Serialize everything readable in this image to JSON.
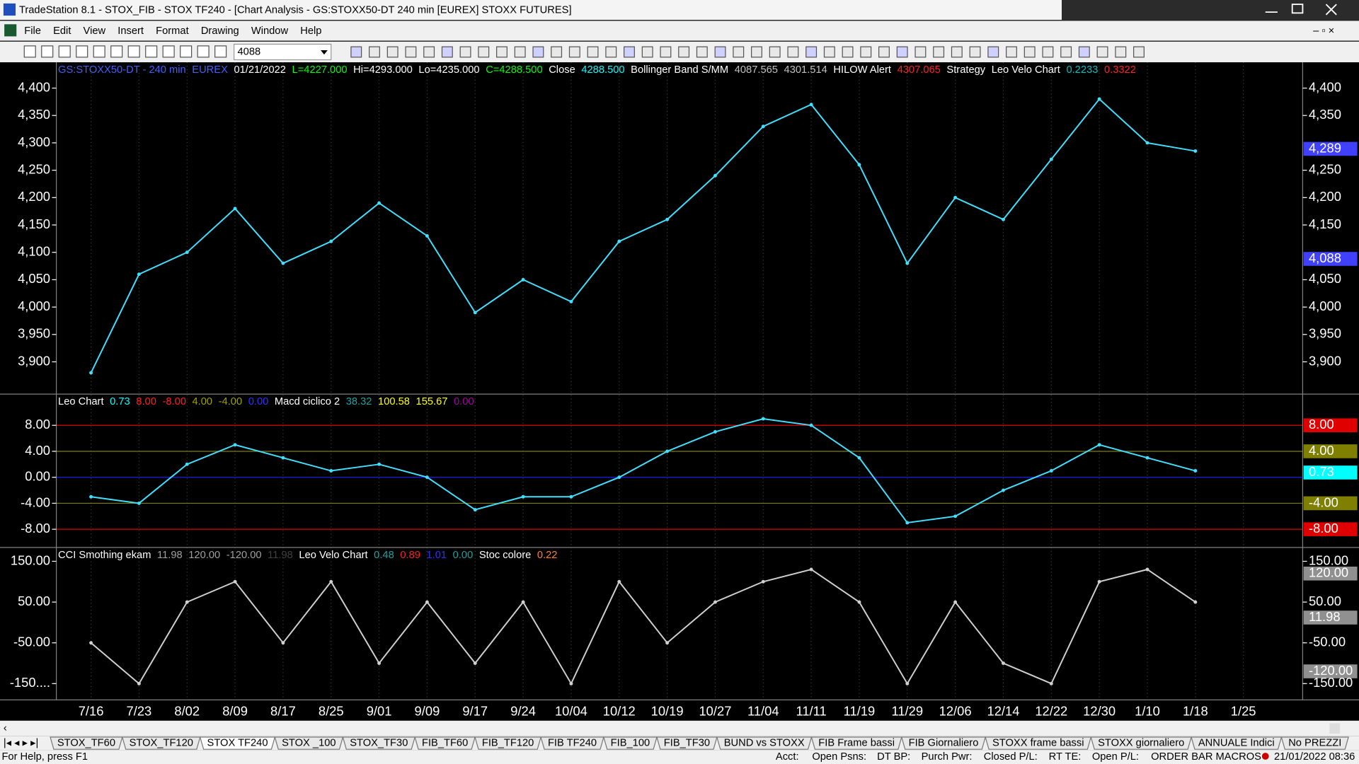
{
  "window": {
    "title": "TradeStation 8.1 - STOX_FIB - STOX TF240 - [Chart Analysis - GS:STOXX50-DT  240 min  [EUREX] STOXX FUTURES]",
    "menu": [
      "File",
      "Edit",
      "View",
      "Insert",
      "Format",
      "Drawing",
      "Window",
      "Help"
    ],
    "toolbar_combo": "4088"
  },
  "chart_data": [
    {
      "type": "line",
      "legend_items": [
        {
          "text": "GS:STOXX50-DT - 240 min",
          "color": "#4060ff"
        },
        {
          "text": "EUREX",
          "color": "#4060ff"
        },
        {
          "text": "01/21/2022",
          "color": "#ffffff"
        },
        {
          "text": "L=4227.000",
          "color": "#00ff00"
        },
        {
          "text": "Hi=4293.000",
          "color": "#ffffff"
        },
        {
          "text": "Lo=4235.000",
          "color": "#ffffff"
        },
        {
          "text": "C=4288.500",
          "color": "#00ff00"
        },
        {
          "text": "Close",
          "color": "#ffffff"
        },
        {
          "text": "4288.500",
          "color": "#00ffff"
        },
        {
          "text": "Bollinger Band S/MM",
          "color": "#ffffff"
        },
        {
          "text": "4087.565",
          "color": "#c0c0c0"
        },
        {
          "text": "4301.514",
          "color": "#c0c0c0"
        },
        {
          "text": "HILOW Alert",
          "color": "#ffffff"
        },
        {
          "text": "4307.065",
          "color": "#ff2020"
        },
        {
          "text": "Strategy",
          "color": "#ffffff"
        },
        {
          "text": "Leo Velo Chart",
          "color": "#ffffff"
        },
        {
          "text": "0.2233",
          "color": "#00c0c0"
        },
        {
          "text": "0.3322",
          "color": "#ff2020"
        }
      ],
      "categories": [
        "7/16",
        "7/23",
        "8/02",
        "8/09",
        "8/17",
        "8/25",
        "9/01",
        "9/09",
        "9/17",
        "9/24",
        "10/04",
        "10/12",
        "10/19",
        "10/27",
        "11/04",
        "11/11",
        "11/19",
        "11/29",
        "12/06",
        "12/14",
        "12/22",
        "12/30",
        "1/10",
        "1/18",
        "1/25"
      ],
      "series": [
        {
          "name": "Close",
          "color": "#40e0ff",
          "values": [
            3880,
            4060,
            4100,
            4180,
            4080,
            4120,
            4190,
            4130,
            3990,
            4050,
            4010,
            4120,
            4160,
            4240,
            4330,
            4370,
            4260,
            4080,
            4200,
            4160,
            4270,
            4380,
            4300,
            4285,
            null
          ]
        }
      ],
      "ylim": [
        3841,
        4447
      ],
      "yticks": [
        {
          "value": 4400,
          "label": "4,400"
        },
        {
          "value": 4350,
          "label": "4,350"
        },
        {
          "value": 4300,
          "label": "4,300"
        },
        {
          "value": 4250,
          "label": "4,250"
        },
        {
          "value": 4200,
          "label": "4,200"
        },
        {
          "value": 4150,
          "label": "4,150"
        },
        {
          "value": 4100,
          "label": "4,100"
        },
        {
          "value": 4050,
          "label": "4,050"
        },
        {
          "value": 4000,
          "label": "4,000"
        },
        {
          "value": 3950,
          "label": "3,950"
        },
        {
          "value": 3900,
          "label": "3,900"
        }
      ],
      "right_labels": [
        {
          "value": 4400,
          "label": "4,400"
        },
        {
          "value": 4350,
          "label": "4,350"
        },
        {
          "value": 4289,
          "label": "4,289",
          "color": "#4040ff"
        },
        {
          "value": 4250,
          "label": "4,250"
        },
        {
          "value": 4200,
          "label": "4,200"
        },
        {
          "value": 4150,
          "label": "4,150"
        },
        {
          "value": 4088,
          "label": "4,088",
          "color": "#4040ff"
        },
        {
          "value": 4050,
          "label": "4,050"
        },
        {
          "value": 4000,
          "label": "4,000"
        },
        {
          "value": 3950,
          "label": "3,950"
        },
        {
          "value": 3900,
          "label": "3,900"
        }
      ]
    },
    {
      "type": "line",
      "legend_items": [
        {
          "text": "Leo Chart",
          "color": "#ffffff"
        },
        {
          "text": "0.73",
          "color": "#00ffff"
        },
        {
          "text": "8.00",
          "color": "#ff2020"
        },
        {
          "text": "-8.00",
          "color": "#ff2020"
        },
        {
          "text": "4.00",
          "color": "#a0a000"
        },
        {
          "text": "-4.00",
          "color": "#a0a000"
        },
        {
          "text": "0.00",
          "color": "#3030ff"
        },
        {
          "text": "Macd ciclico 2",
          "color": "#ffffff"
        },
        {
          "text": "38.32",
          "color": "#20a0a0"
        },
        {
          "text": "100.58",
          "color": "#ffff00"
        },
        {
          "text": "155.67",
          "color": "#ffff00"
        },
        {
          "text": "0.00",
          "color": "#a000a0"
        }
      ],
      "series": [
        {
          "name": "Leo Chart",
          "color": "#40e0ff",
          "values": [
            -3,
            -4,
            2,
            5,
            3,
            1,
            2,
            0,
            -5,
            -3,
            -3,
            0,
            4,
            7,
            9,
            8,
            3,
            -7,
            -6,
            -2,
            1,
            5,
            3,
            1,
            null
          ]
        }
      ],
      "ylim": [
        -10.8,
        12.8
      ],
      "yticks": [
        {
          "value": 8,
          "label": "8.00"
        },
        {
          "value": 4,
          "label": "4.00"
        },
        {
          "value": 0,
          "label": "0.00"
        },
        {
          "value": -4,
          "label": "-4.00"
        },
        {
          "value": -8,
          "label": "-8.00"
        }
      ],
      "tick_colors": [
        "#e00000",
        "#808000",
        "#2020ff",
        "#808000",
        "#e00000"
      ],
      "right_labels": [
        {
          "value": 8,
          "label": "8.00",
          "color": "#e00000"
        },
        {
          "value": 4,
          "label": "4.00",
          "color": "#808000"
        },
        {
          "value": 0.73,
          "label": "0.73",
          "color": "#00ffff"
        },
        {
          "value": -4,
          "label": "-4.00",
          "color": "#808000"
        },
        {
          "value": -8,
          "label": "-8.00",
          "color": "#e00000"
        }
      ]
    },
    {
      "type": "line",
      "legend_items": [
        {
          "text": "CCI Smothing ekam",
          "color": "#ffffff"
        },
        {
          "text": "11.98",
          "color": "#a0a0a0"
        },
        {
          "text": "120.00",
          "color": "#a0a0a0"
        },
        {
          "text": "-120.00",
          "color": "#a0a0a0"
        },
        {
          "text": "11.98",
          "color": "#404040"
        },
        {
          "text": "Leo Velo Chart",
          "color": "#ffffff"
        },
        {
          "text": "0.48",
          "color": "#20a0a0"
        },
        {
          "text": "0.89",
          "color": "#ff2020"
        },
        {
          "text": "1.01",
          "color": "#3030ff"
        },
        {
          "text": "0.00",
          "color": "#20a0a0"
        },
        {
          "text": "Stoc colore",
          "color": "#ffffff"
        },
        {
          "text": "0.22",
          "color": "#ff8020"
        }
      ],
      "series": [
        {
          "name": "CCI Smothing ekam",
          "color": "#d0d0d0",
          "values": [
            -50,
            -150,
            50,
            100,
            -50,
            100,
            -100,
            50,
            -100,
            50,
            -150,
            100,
            -50,
            50,
            100,
            130,
            50,
            -150,
            50,
            -100,
            -150,
            100,
            130,
            50,
            null
          ]
        }
      ],
      "ylim": [
        -190,
        184
      ],
      "yticks": [
        {
          "value": 150,
          "label": "150.00"
        },
        {
          "value": 50,
          "label": "50.00"
        },
        {
          "value": -50,
          "label": "-50.00"
        },
        {
          "value": -150,
          "label": "-150...."
        }
      ],
      "right_labels": [
        {
          "value": 150,
          "label": "150.00"
        },
        {
          "value": 120,
          "label": "120.00",
          "color": "#909090"
        },
        {
          "value": 50,
          "label": "50.00"
        },
        {
          "value": 11.98,
          "label": "11.98",
          "color": "#909090"
        },
        {
          "value": -50,
          "label": "-50.00"
        },
        {
          "value": -120,
          "label": "-120.00",
          "color": "#909090"
        },
        {
          "value": -150,
          "label": "-150.00"
        }
      ]
    }
  ],
  "tabs": [
    "STOX_TF60",
    "STOX_TF120",
    "STOX TF240",
    "STOX _100",
    "STOX_TF30",
    "FIB_TF60",
    "FIB_TF120",
    "FIB TF240",
    "FIB_100",
    "FIB_TF30",
    "BUND vs STOXX",
    "FIB Frame bassi",
    "FIB Giornaliero",
    "STOXX frame bassi",
    "STOXX giornaliero",
    "ANNUALE Indici",
    "No PREZZI"
  ],
  "active_tab": 2,
  "status_bar": [
    "For Help, press F1",
    "Acct:",
    "Open Psns:",
    "DT BP:",
    "Purch Pwr:",
    "Closed P/L:",
    "RT TE:",
    "Open P/L:",
    "ORDER BAR MACROS",
    "21/01/2022 08:36"
  ]
}
